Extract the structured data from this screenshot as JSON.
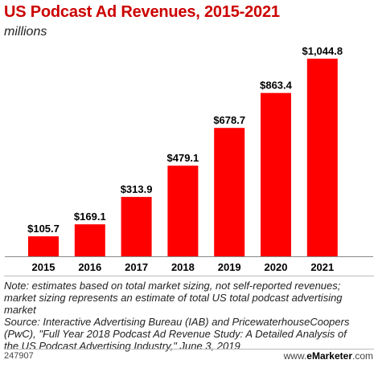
{
  "header": {
    "title": "US Podcast Ad Revenues, 2015-2021",
    "subtitle": "millions"
  },
  "chart_data": {
    "type": "bar",
    "categories": [
      "2015",
      "2016",
      "2017",
      "2018",
      "2019",
      "2020",
      "2021"
    ],
    "values": [
      105.7,
      169.1,
      313.9,
      479.1,
      678.7,
      863.4,
      1044.8
    ],
    "value_labels": [
      "$105.7",
      "$169.1",
      "$313.9",
      "$479.1",
      "$678.7",
      "$863.4",
      "$1,044.8"
    ],
    "title": "US Podcast Ad Revenues, 2015-2021",
    "subtitle": "millions",
    "xlabel": "",
    "ylabel": "",
    "ylim": [
      0,
      1044.8
    ],
    "grid": false,
    "bar_color": "#ff0000"
  },
  "footnote": {
    "note_lines": [
      "Note: estimates based on total market sizing, not self-reported revenues;",
      "market sizing represents an estimate of total US total podcast advertising",
      "market"
    ],
    "source_lines": [
      "Source: Interactive Advertising Bureau (IAB) and PricewaterhouseCoopers",
      "(PwC), \"Full Year 2018 Podcast Ad Revenue Study: A Detailed Analysis of",
      "the US Podcast Advertising Industry,\" June 3, 2019"
    ]
  },
  "footer": {
    "chart_id": "247907",
    "brand_prefix": "www.",
    "brand_name": "eMarketer",
    "brand_suffix": ".com"
  }
}
